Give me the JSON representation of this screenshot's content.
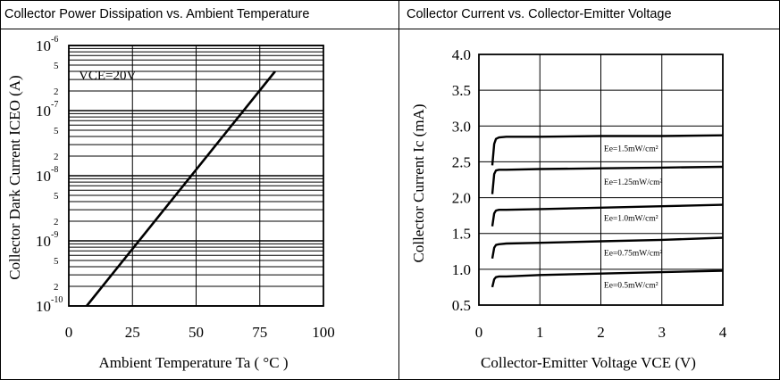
{
  "chart_data": [
    {
      "type": "line",
      "title": "Collector Power Dissipation vs. Ambient Temperature",
      "xlabel": "Ambient Temperature Ta ( °C )",
      "ylabel": "Collector Dark Current ICEO (A)",
      "y_scale": "log",
      "xlim": [
        0,
        100
      ],
      "ylim": [
        1e-10,
        1e-06
      ],
      "x_ticks": [
        "0",
        "25",
        "50",
        "75",
        "100"
      ],
      "y_decades": [
        {
          "base": "10",
          "exp": "-6"
        },
        {
          "base": "10",
          "exp": "-7"
        },
        {
          "base": "10",
          "exp": "-8"
        },
        {
          "base": "10",
          "exp": "-9"
        },
        {
          "base": "10",
          "exp": "-10"
        }
      ],
      "y_minor_labels": [
        "5",
        "2"
      ],
      "annotation": "VCE=20V",
      "series": [
        {
          "name": "ICEO",
          "x": [
            7,
            81
          ],
          "y": [
            1e-10,
            4e-07
          ]
        }
      ]
    },
    {
      "type": "line",
      "title": "Collector Current vs. Collector-Emitter Voltage",
      "xlabel": "Collector-Emitter Voltage VCE (V)",
      "ylabel": "Collector Current Ic (mA)",
      "xlim": [
        0,
        4
      ],
      "ylim": [
        0.5,
        4.0
      ],
      "x_ticks": [
        "0",
        "1",
        "2",
        "3",
        "4"
      ],
      "y_ticks": [
        "4.0",
        "3.5",
        "3.0",
        "2.5",
        "2.0",
        "1.5",
        "1.0",
        "0.5"
      ],
      "series": [
        {
          "name": "Ee=1.5mW/cm²",
          "x": [
            0.22,
            0.25,
            0.28,
            0.33,
            0.45,
            1.0,
            2.0,
            3.0,
            4.0
          ],
          "y": [
            2.45,
            2.75,
            2.82,
            2.84,
            2.85,
            2.85,
            2.86,
            2.86,
            2.87
          ]
        },
        {
          "name": "Ee=1.25mW/cm²",
          "x": [
            0.22,
            0.25,
            0.28,
            0.33,
            0.45,
            1.0,
            2.0,
            3.0,
            4.0
          ],
          "y": [
            2.05,
            2.33,
            2.38,
            2.39,
            2.39,
            2.4,
            2.41,
            2.42,
            2.43
          ]
        },
        {
          "name": "Ee=1.0mW/cm²",
          "x": [
            0.22,
            0.25,
            0.28,
            0.33,
            0.45,
            1.0,
            2.0,
            3.0,
            4.0
          ],
          "y": [
            1.6,
            1.78,
            1.82,
            1.83,
            1.83,
            1.84,
            1.86,
            1.88,
            1.9
          ]
        },
        {
          "name": "Ee=0.75mW/cm²",
          "x": [
            0.22,
            0.25,
            0.28,
            0.33,
            0.45,
            1.0,
            2.0,
            3.0,
            4.0
          ],
          "y": [
            1.15,
            1.3,
            1.34,
            1.35,
            1.36,
            1.37,
            1.39,
            1.41,
            1.44
          ]
        },
        {
          "name": "Ee=0.5mW/cm²",
          "x": [
            0.22,
            0.25,
            0.28,
            0.33,
            0.45,
            1.0,
            2.0,
            3.0,
            4.0
          ],
          "y": [
            0.75,
            0.86,
            0.89,
            0.9,
            0.9,
            0.92,
            0.94,
            0.96,
            0.98
          ]
        }
      ]
    }
  ]
}
